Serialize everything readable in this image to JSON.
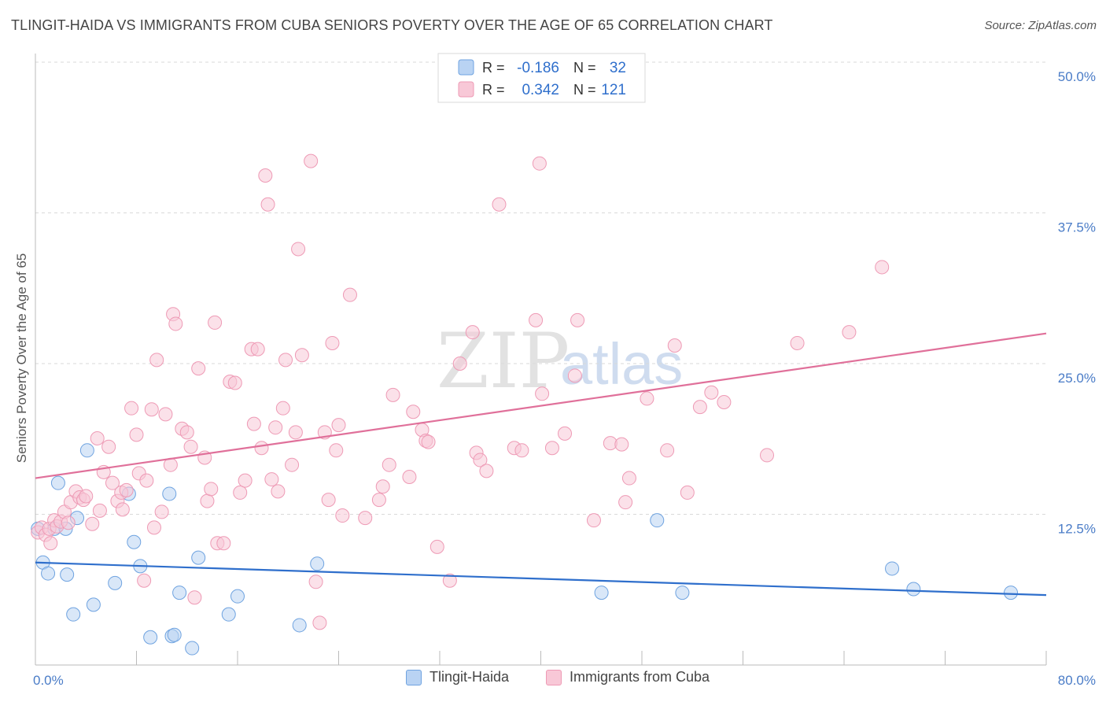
{
  "header": {
    "title": "TLINGIT-HAIDA VS IMMIGRANTS FROM CUBA SENIORS POVERTY OVER THE AGE OF 65 CORRELATION CHART",
    "source": "Source: ZipAtlas.com"
  },
  "watermark": {
    "zip": "ZIP",
    "atlas": "atlas"
  },
  "legend_stats": [
    {
      "r_label": "R =",
      "r_value": "-0.186",
      "n_label": "N =",
      "n_value": "32"
    },
    {
      "r_label": "R =",
      "r_value": "0.342",
      "n_label": "N =",
      "n_value": "121"
    }
  ],
  "chart_data": {
    "type": "scatter",
    "title": "TLINGIT-HAIDA VS IMMIGRANTS FROM CUBA SENIORS POVERTY OVER THE AGE OF 65 CORRELATION CHART",
    "xlabel": "",
    "ylabel": "Seniors Poverty Over the Age of 65",
    "xlim": [
      0,
      80
    ],
    "ylim": [
      0,
      50
    ],
    "x_tick_labels": [
      "0.0%",
      "80.0%"
    ],
    "y_tick_labels": [
      "12.5%",
      "25.0%",
      "37.5%",
      "50.0%"
    ],
    "y_ticks": [
      12.5,
      25,
      37.5,
      50
    ],
    "grid": true,
    "legend_position": "bottom-center",
    "series": [
      {
        "name": "Tlingit-Haida",
        "color": "#6fa3e0",
        "fill": "#b9d3f3",
        "line_color": "#2f6fcc",
        "trend": [
          [
            0,
            8.5
          ],
          [
            80,
            5.8
          ]
        ],
        "points": [
          [
            0.2,
            11.3
          ],
          [
            0.6,
            8.5
          ],
          [
            1.0,
            7.6
          ],
          [
            1.5,
            11.3
          ],
          [
            1.8,
            15.1
          ],
          [
            2.4,
            11.3
          ],
          [
            2.5,
            7.5
          ],
          [
            3.0,
            4.2
          ],
          [
            3.3,
            12.2
          ],
          [
            4.1,
            17.8
          ],
          [
            4.6,
            5.0
          ],
          [
            6.3,
            6.8
          ],
          [
            7.4,
            14.2
          ],
          [
            7.8,
            10.2
          ],
          [
            8.3,
            8.2
          ],
          [
            9.1,
            2.3
          ],
          [
            10.6,
            14.2
          ],
          [
            10.8,
            2.4
          ],
          [
            11.0,
            2.5
          ],
          [
            11.4,
            6.0
          ],
          [
            12.4,
            1.4
          ],
          [
            12.9,
            8.9
          ],
          [
            15.3,
            4.2
          ],
          [
            16.0,
            5.7
          ],
          [
            20.9,
            3.3
          ],
          [
            22.3,
            8.4
          ],
          [
            44.8,
            6.0
          ],
          [
            49.2,
            12.0
          ],
          [
            51.2,
            6.0
          ],
          [
            67.8,
            8.0
          ],
          [
            69.5,
            6.3
          ],
          [
            77.2,
            6.0
          ]
        ]
      },
      {
        "name": "Immigrants from Cuba",
        "color": "#ee9ab5",
        "fill": "#f8c8d7",
        "line_color": "#e0709a",
        "trend": [
          [
            0,
            15.5
          ],
          [
            80,
            27.5
          ]
        ],
        "points": [
          [
            0.2,
            11.0
          ],
          [
            0.5,
            11.4
          ],
          [
            0.8,
            10.8
          ],
          [
            1.1,
            11.3
          ],
          [
            1.2,
            10.1
          ],
          [
            1.5,
            12.0
          ],
          [
            1.7,
            11.5
          ],
          [
            2.0,
            11.9
          ],
          [
            2.3,
            12.7
          ],
          [
            2.6,
            11.8
          ],
          [
            2.8,
            13.5
          ],
          [
            3.2,
            14.4
          ],
          [
            3.5,
            13.9
          ],
          [
            3.8,
            13.7
          ],
          [
            4.0,
            14.0
          ],
          [
            4.5,
            11.7
          ],
          [
            4.9,
            18.8
          ],
          [
            5.1,
            12.8
          ],
          [
            5.4,
            16.0
          ],
          [
            5.8,
            18.1
          ],
          [
            6.1,
            15.1
          ],
          [
            6.5,
            13.6
          ],
          [
            6.8,
            14.3
          ],
          [
            6.9,
            12.9
          ],
          [
            7.2,
            14.5
          ],
          [
            7.6,
            21.3
          ],
          [
            8.0,
            19.1
          ],
          [
            8.2,
            15.9
          ],
          [
            8.6,
            7.0
          ],
          [
            8.8,
            15.3
          ],
          [
            9.2,
            21.2
          ],
          [
            9.4,
            11.4
          ],
          [
            9.6,
            25.3
          ],
          [
            10.0,
            12.7
          ],
          [
            10.3,
            20.8
          ],
          [
            10.7,
            16.6
          ],
          [
            10.9,
            29.1
          ],
          [
            11.1,
            28.3
          ],
          [
            11.6,
            19.6
          ],
          [
            12.0,
            19.3
          ],
          [
            12.3,
            18.1
          ],
          [
            12.6,
            5.6
          ],
          [
            12.9,
            24.6
          ],
          [
            13.4,
            17.2
          ],
          [
            13.6,
            13.6
          ],
          [
            13.9,
            14.6
          ],
          [
            14.2,
            28.4
          ],
          [
            14.4,
            10.1
          ],
          [
            14.9,
            10.1
          ],
          [
            15.4,
            23.5
          ],
          [
            15.8,
            23.4
          ],
          [
            16.2,
            14.3
          ],
          [
            16.6,
            15.3
          ],
          [
            17.1,
            26.2
          ],
          [
            17.3,
            20.0
          ],
          [
            17.6,
            26.2
          ],
          [
            17.9,
            18.0
          ],
          [
            18.2,
            40.6
          ],
          [
            18.4,
            38.2
          ],
          [
            18.7,
            15.4
          ],
          [
            19.0,
            19.7
          ],
          [
            19.2,
            14.4
          ],
          [
            19.6,
            21.3
          ],
          [
            19.8,
            25.3
          ],
          [
            20.3,
            16.6
          ],
          [
            20.6,
            19.3
          ],
          [
            20.8,
            34.5
          ],
          [
            21.1,
            25.7
          ],
          [
            21.8,
            41.8
          ],
          [
            22.2,
            6.9
          ],
          [
            22.5,
            3.5
          ],
          [
            22.9,
            19.3
          ],
          [
            23.2,
            13.7
          ],
          [
            23.5,
            26.7
          ],
          [
            23.8,
            17.8
          ],
          [
            24.0,
            19.9
          ],
          [
            24.3,
            12.4
          ],
          [
            24.9,
            30.7
          ],
          [
            26.1,
            12.2
          ],
          [
            27.2,
            13.7
          ],
          [
            27.5,
            14.8
          ],
          [
            28.0,
            16.6
          ],
          [
            28.3,
            22.4
          ],
          [
            29.6,
            15.6
          ],
          [
            29.9,
            21.0
          ],
          [
            30.6,
            19.5
          ],
          [
            30.9,
            18.6
          ],
          [
            31.1,
            18.5
          ],
          [
            31.8,
            9.8
          ],
          [
            32.8,
            7.0
          ],
          [
            33.6,
            25.0
          ],
          [
            34.6,
            27.6
          ],
          [
            34.9,
            17.6
          ],
          [
            35.2,
            17.0
          ],
          [
            35.7,
            16.1
          ],
          [
            36.7,
            38.2
          ],
          [
            37.9,
            18.0
          ],
          [
            38.5,
            17.8
          ],
          [
            39.6,
            28.6
          ],
          [
            39.9,
            41.6
          ],
          [
            40.1,
            22.5
          ],
          [
            40.9,
            18.0
          ],
          [
            41.9,
            19.2
          ],
          [
            42.7,
            24.0
          ],
          [
            42.9,
            28.6
          ],
          [
            44.2,
            12.0
          ],
          [
            45.5,
            18.4
          ],
          [
            46.4,
            18.3
          ],
          [
            46.7,
            13.5
          ],
          [
            47.0,
            15.5
          ],
          [
            48.4,
            22.1
          ],
          [
            50.0,
            17.8
          ],
          [
            50.6,
            26.5
          ],
          [
            51.6,
            14.3
          ],
          [
            52.6,
            21.4
          ],
          [
            53.5,
            22.6
          ],
          [
            54.5,
            21.8
          ],
          [
            57.9,
            17.4
          ],
          [
            60.3,
            26.7
          ],
          [
            64.4,
            27.6
          ],
          [
            67.0,
            33.0
          ]
        ]
      }
    ]
  },
  "bottom_legend": [
    "Tlingit-Haida",
    "Immigrants from Cuba"
  ]
}
